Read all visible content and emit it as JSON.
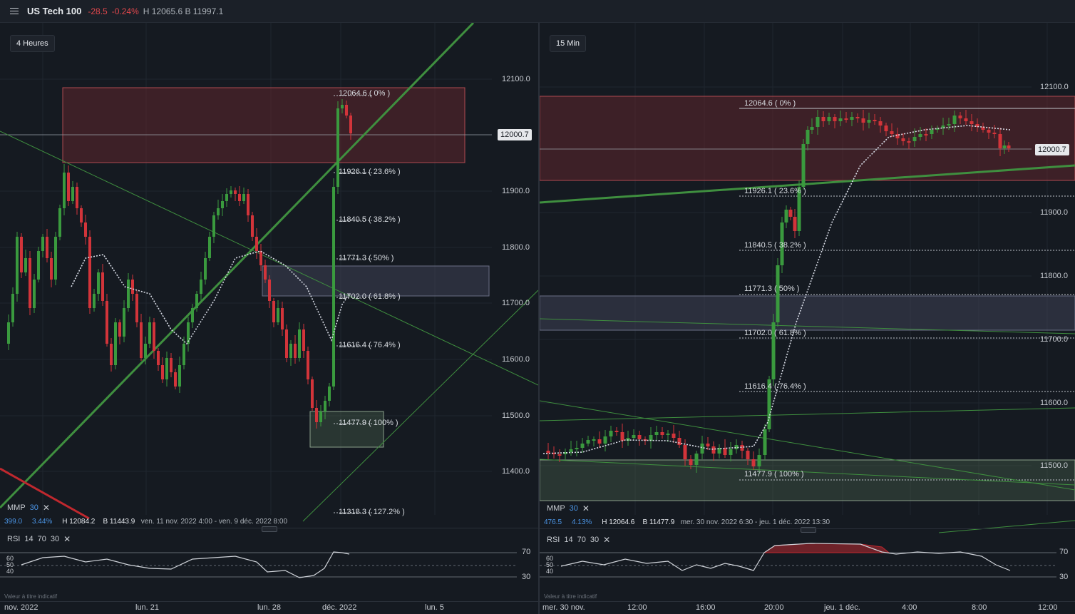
{
  "header": {
    "symbol": "US Tech 100",
    "change": "-28.5",
    "change_pct": "-0.24%",
    "high_low": "H 12065.6 B 11997.1"
  },
  "left": {
    "timeframe": "4 Heures",
    "price_tag": "12000.7",
    "y_labels": [
      "12100.0",
      "11900.0",
      "11800.0",
      "11700.0",
      "11600.0",
      "11500.0",
      "11400.0"
    ],
    "fib": [
      "12064.6 ( 0% )",
      "11926.1 ( 23.6% )",
      "11840.5 ( 38.2% )",
      "11771.3 ( 50% )",
      "11702.0 ( 61.8% )",
      "11616.4 ( 76.4% )",
      "11477.9 ( 100% )",
      "11318.3 ( 127.2% )"
    ],
    "mmp": {
      "name": "MMP",
      "period": "30",
      "value": "399.0",
      "pct": "3.44%",
      "high": "H 12084.2",
      "low": "B 11443.9",
      "range": "ven. 11 nov. 2022 4:00 - ven. 9 déc. 2022 8:00"
    },
    "rsi": {
      "name": "RSI",
      "p1": "14",
      "p2": "70",
      "p3": "30",
      "levels": [
        "70",
        "30"
      ],
      "inner": [
        "60",
        "50",
        "40"
      ]
    },
    "note": "Valeur à titre indicatif",
    "x_labels": [
      "nov. 2022",
      "lun. 21",
      "lun. 28",
      "déc. 2022",
      "lun. 5"
    ]
  },
  "right": {
    "timeframe": "15 Min",
    "price_tag": "12000.7",
    "y_labels": [
      "12100.0",
      "11900.0",
      "11800.0",
      "11700.0",
      "11600.0",
      "11500.0"
    ],
    "fib": [
      "12064.6 ( 0% )",
      "11926.1 ( 23.6% )",
      "11840.5 ( 38.2% )",
      "11771.3 ( 50% )",
      "11702.0 ( 61.8% )",
      "11616.4 ( 76.4% )",
      "11477.9 ( 100% )"
    ],
    "mmp": {
      "name": "MMP",
      "period": "30",
      "value": "476.5",
      "pct": "4.13%",
      "high": "H 12064.6",
      "low": "B 11477.9",
      "range": "mer. 30 nov. 2022 6:30 - jeu. 1 déc. 2022 13:30"
    },
    "rsi": {
      "name": "RSI",
      "p1": "14",
      "p2": "70",
      "p3": "30",
      "levels": [
        "70",
        "30"
      ],
      "inner": [
        "60",
        "50",
        "40"
      ]
    },
    "note": "Valeur à titre indicatif",
    "x_labels": [
      "mer. 30 nov.",
      "12:00",
      "16:00",
      "20:00",
      "jeu. 1 déc.",
      "4:00",
      "8:00",
      "12:00"
    ]
  },
  "colors": {
    "bull": "#3a9a3e",
    "bear": "#d2343a",
    "accent_green": "#3f8f3f",
    "resistance": "#6e2a2e",
    "neutral_zone": "#3e4255"
  }
}
